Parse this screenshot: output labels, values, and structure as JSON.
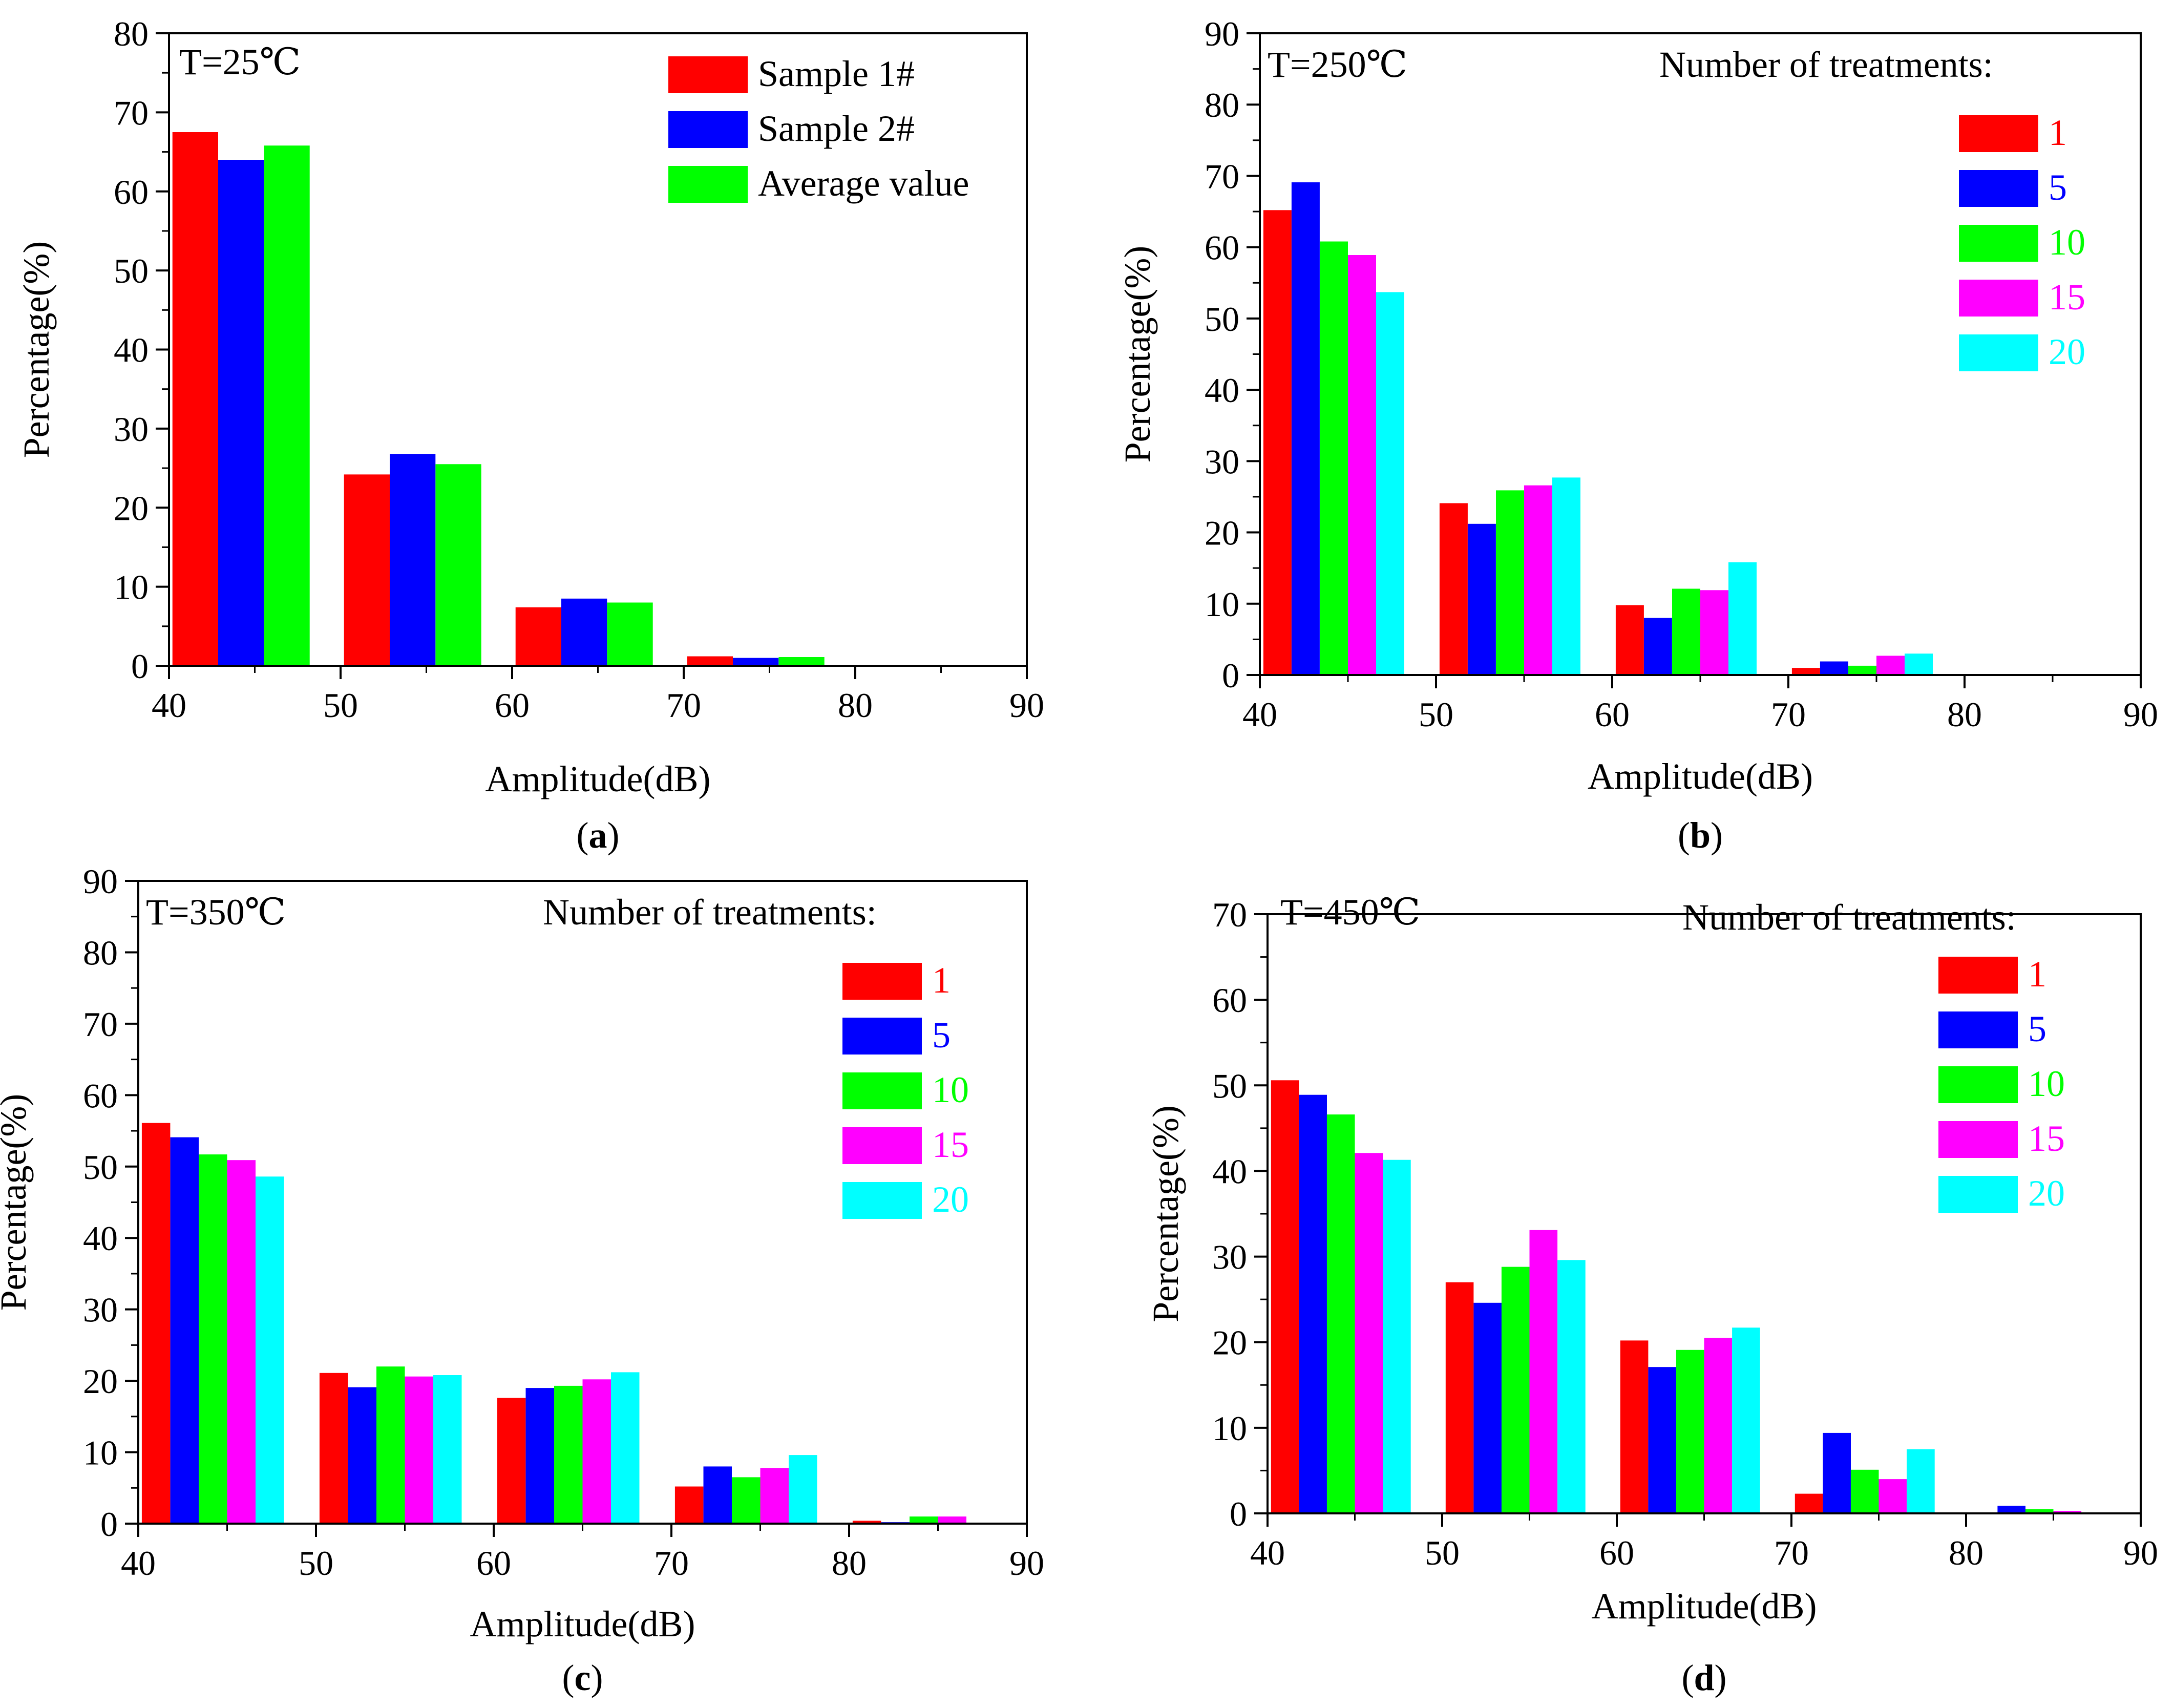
{
  "chart_data": [
    {
      "type": "bar",
      "panel_label": "a",
      "annotation": "T=25℃",
      "legend_title": "",
      "xlabel": "Amplitude(dB)",
      "ylabel": "Percentage(%)",
      "xlim": [
        40,
        90
      ],
      "ylim": [
        0,
        80
      ],
      "xticks": [
        40,
        50,
        60,
        70,
        80,
        90
      ],
      "yticks": [
        0,
        10,
        20,
        30,
        40,
        50,
        60,
        70,
        80
      ],
      "categories": [
        40,
        50,
        60,
        70,
        80
      ],
      "bin_width": 10,
      "legend_text_colored": false,
      "series": [
        {
          "name": "Sample 1#",
          "color": "#ff0000",
          "values": [
            67.5,
            24.2,
            7.4,
            1.2,
            0
          ]
        },
        {
          "name": "Sample 2#",
          "color": "#0000ff",
          "values": [
            64.0,
            26.8,
            8.5,
            1.0,
            0
          ]
        },
        {
          "name": "Average value",
          "color": "#00ff00",
          "values": [
            65.8,
            25.5,
            8.0,
            1.1,
            0
          ]
        }
      ]
    },
    {
      "type": "bar",
      "panel_label": "b",
      "annotation": "T=250℃",
      "legend_title": "Number of treatments:",
      "xlabel": "Amplitude(dB)",
      "ylabel": "Percentage(%)",
      "xlim": [
        40,
        90
      ],
      "ylim": [
        0,
        90
      ],
      "xticks": [
        40,
        50,
        60,
        70,
        80,
        90
      ],
      "yticks": [
        0,
        10,
        20,
        30,
        40,
        50,
        60,
        70,
        80,
        90
      ],
      "categories": [
        40,
        50,
        60,
        70,
        80
      ],
      "bin_width": 10,
      "legend_text_colored": true,
      "series": [
        {
          "name": "1",
          "color": "#ff0000",
          "values": [
            65.2,
            24.1,
            9.8,
            1.0,
            0
          ]
        },
        {
          "name": "5",
          "color": "#0000ff",
          "values": [
            69.1,
            21.2,
            8.0,
            1.9,
            0
          ]
        },
        {
          "name": "10",
          "color": "#00ff00",
          "values": [
            60.8,
            25.9,
            12.1,
            1.3,
            0
          ]
        },
        {
          "name": "15",
          "color": "#ff00ff",
          "values": [
            58.9,
            26.6,
            11.9,
            2.7,
            0
          ]
        },
        {
          "name": "20",
          "color": "#00ffff",
          "values": [
            53.7,
            27.7,
            15.8,
            3.0,
            0
          ]
        }
      ]
    },
    {
      "type": "bar",
      "panel_label": "c",
      "annotation": "T=350℃",
      "legend_title": "Number of treatments:",
      "xlabel": "Amplitude(dB)",
      "ylabel": "Percentage(%)",
      "xlim": [
        40,
        90
      ],
      "ylim": [
        0,
        90
      ],
      "xticks": [
        40,
        50,
        60,
        70,
        80,
        90
      ],
      "yticks": [
        0,
        10,
        20,
        30,
        40,
        50,
        60,
        70,
        80,
        90
      ],
      "categories": [
        40,
        50,
        60,
        70,
        80
      ],
      "bin_width": 10,
      "legend_text_colored": true,
      "series": [
        {
          "name": "1",
          "color": "#ff0000",
          "values": [
            56.1,
            21.1,
            17.6,
            5.2,
            0.4
          ]
        },
        {
          "name": "5",
          "color": "#0000ff",
          "values": [
            54.1,
            19.1,
            19.0,
            8.0,
            0.2
          ]
        },
        {
          "name": "10",
          "color": "#00ff00",
          "values": [
            51.7,
            22.0,
            19.3,
            6.5,
            1.0
          ]
        },
        {
          "name": "15",
          "color": "#ff00ff",
          "values": [
            50.9,
            20.6,
            20.2,
            7.8,
            1.0
          ]
        },
        {
          "name": "20",
          "color": "#00ffff",
          "values": [
            48.6,
            20.8,
            21.2,
            9.6,
            0
          ]
        }
      ]
    },
    {
      "type": "bar",
      "panel_label": "d",
      "annotation": "T=450℃",
      "legend_title": "Number of treatments:",
      "xlabel": "Amplitude(dB)",
      "ylabel": "Percentage(%)",
      "xlim": [
        40,
        90
      ],
      "ylim": [
        0,
        70
      ],
      "xticks": [
        40,
        50,
        60,
        70,
        80,
        90
      ],
      "yticks": [
        0,
        10,
        20,
        30,
        40,
        50,
        60,
        70
      ],
      "categories": [
        40,
        50,
        60,
        70,
        80
      ],
      "bin_width": 10,
      "legend_text_colored": true,
      "series": [
        {
          "name": "1",
          "color": "#ff0000",
          "values": [
            50.6,
            27.0,
            20.2,
            2.3,
            0
          ]
        },
        {
          "name": "5",
          "color": "#0000ff",
          "values": [
            48.9,
            24.6,
            17.1,
            9.4,
            0.9
          ]
        },
        {
          "name": "10",
          "color": "#00ff00",
          "values": [
            46.6,
            28.8,
            19.1,
            5.1,
            0.5
          ]
        },
        {
          "name": "15",
          "color": "#ff00ff",
          "values": [
            42.1,
            33.1,
            20.5,
            4.0,
            0.3
          ]
        },
        {
          "name": "20",
          "color": "#00ffff",
          "values": [
            41.3,
            29.6,
            21.7,
            7.5,
            0
          ]
        }
      ]
    }
  ]
}
